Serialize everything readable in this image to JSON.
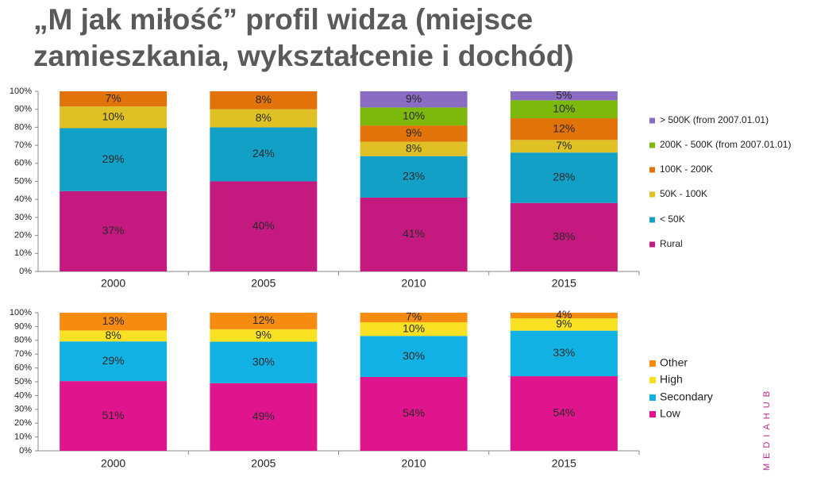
{
  "slide": {
    "title": "„M jak miłość” profil widza (miejsce zamieszkania, wykształcenie i dochód)",
    "logo": "MEDIAHUB"
  },
  "chart_data": [
    {
      "type": "bar",
      "stacking": "percent",
      "legend": "right",
      "categories": [
        "2000",
        "2005",
        "2010",
        "2015"
      ],
      "ylim": [
        0,
        100
      ],
      "yticks": [
        {
          "value": 0,
          "label": "0%"
        },
        {
          "value": 10,
          "label": "10%"
        },
        {
          "value": 20,
          "label": "20%"
        },
        {
          "value": 30,
          "label": "30%"
        },
        {
          "value": 40,
          "label": "40%"
        },
        {
          "value": 50,
          "label": "50%"
        },
        {
          "value": 60,
          "label": "60%"
        },
        {
          "value": 70,
          "label": "70%"
        },
        {
          "value": 80,
          "label": "80%"
        },
        {
          "value": 90,
          "label": "90%"
        },
        {
          "value": 100,
          "label": "100%"
        }
      ],
      "series": [
        {
          "name": "Rural",
          "color": "#c41a80",
          "values": [
            37,
            40,
            41,
            38
          ],
          "value_labels": [
            "37%",
            "40%",
            "41%",
            "38%"
          ]
        },
        {
          "name": "< 50K",
          "color": "#12a0c6",
          "values": [
            29,
            24,
            23,
            28
          ],
          "value_labels": [
            "29%",
            "24%",
            "23%",
            "28%"
          ]
        },
        {
          "name": "50K - 100K",
          "color": "#dfc125",
          "values": [
            10,
            8,
            8,
            7
          ],
          "value_labels": [
            "10%",
            "8%",
            "8%",
            "7%"
          ]
        },
        {
          "name": "100K - 200K",
          "color": "#e2720a",
          "values": [
            7,
            8,
            9,
            12
          ],
          "value_labels": [
            "7%",
            "8%",
            "9%",
            "12%"
          ]
        },
        {
          "name": "200K - 500K (from 2007.01.01)",
          "color": "#7cb90c",
          "values": [
            null,
            null,
            10,
            10
          ],
          "value_labels": [
            null,
            null,
            "10%",
            "10%"
          ]
        },
        {
          "name": "> 500K (from 2007.01.01)",
          "color": "#8a6dc2",
          "values": [
            null,
            null,
            9,
            5
          ],
          "value_labels": [
            null,
            null,
            "9%",
            "5%"
          ]
        }
      ]
    },
    {
      "type": "bar",
      "stacking": "percent",
      "legend": "right",
      "categories": [
        "2000",
        "2005",
        "2010",
        "2015"
      ],
      "ylim": [
        0,
        100
      ],
      "yticks": [
        {
          "value": 0,
          "label": "0%"
        },
        {
          "value": 10,
          "label": "10%"
        },
        {
          "value": 20,
          "label": "20%"
        },
        {
          "value": 30,
          "label": "30%"
        },
        {
          "value": 40,
          "label": "40%"
        },
        {
          "value": 50,
          "label": "50%"
        },
        {
          "value": 60,
          "label": "60%"
        },
        {
          "value": 70,
          "label": "70%"
        },
        {
          "value": 80,
          "label": "80%"
        },
        {
          "value": 90,
          "label": "90%"
        },
        {
          "value": 100,
          "label": "100%"
        }
      ],
      "series": [
        {
          "name": "Low",
          "color": "#e0158d",
          "values": [
            51,
            49,
            54,
            54
          ],
          "value_labels": [
            "51%",
            "49%",
            "54%",
            "54%"
          ]
        },
        {
          "name": "Secondary",
          "color": "#12b1e3",
          "values": [
            29,
            30,
            30,
            33
          ],
          "value_labels": [
            "29%",
            "30%",
            "30%",
            "33%"
          ]
        },
        {
          "name": "High",
          "color": "#f8e122",
          "values": [
            8,
            9,
            10,
            9
          ],
          "value_labels": [
            "8%",
            "9%",
            "10%",
            "9%"
          ]
        },
        {
          "name": "Other",
          "color": "#f68b12",
          "values": [
            13,
            12,
            7,
            4
          ],
          "value_labels": [
            "13%",
            "12%",
            "7%",
            "4%"
          ]
        }
      ]
    }
  ]
}
